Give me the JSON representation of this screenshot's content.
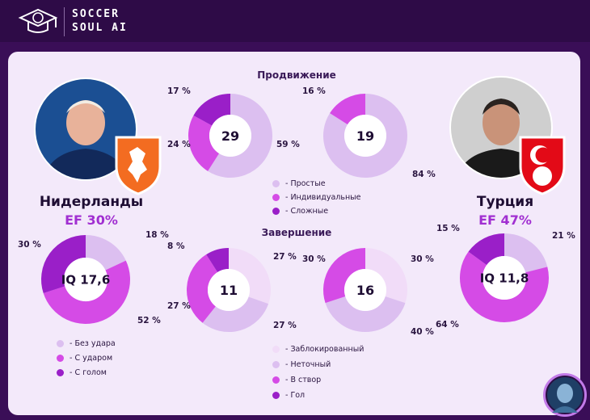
{
  "brand": {
    "line1": "SOCCER",
    "line2": "SOUL AI"
  },
  "sections": {
    "progress": "Продвижение",
    "finish": "Завершение"
  },
  "teams": {
    "left": {
      "name": "Нидерланды",
      "ef": "EF  30%"
    },
    "right": {
      "name": "Турция",
      "ef": "EF  47%"
    }
  },
  "legends": {
    "progress": [
      "- Простые",
      "- Индивидуальные",
      "- Сложные"
    ],
    "attack": [
      "- Без удара",
      "- С ударом",
      "- С голом"
    ],
    "finish": [
      "- Заблокированный",
      "- Неточный",
      "- В створ",
      "- Гол"
    ]
  },
  "colors": {
    "light": "#dcbff0",
    "pale": "#f1dcf8",
    "medium": "#d54be6",
    "dark": "#9a1fc8",
    "mid2": "#d9b3ee"
  },
  "chart_data": [
    {
      "type": "pie",
      "id": "nl-attack",
      "center_label": "IQ 17,6",
      "slices": [
        {
          "label": "Без удара",
          "value": 18,
          "text": "18 %"
        },
        {
          "label": "С ударом",
          "value": 52,
          "text": "52 %"
        },
        {
          "label": "С голом",
          "value": 30,
          "text": "30 %"
        }
      ]
    },
    {
      "type": "pie",
      "id": "nl-progress",
      "center_label": "29",
      "slices": [
        {
          "label": "Простые",
          "value": 59,
          "text": "59 %"
        },
        {
          "label": "Индивидуальные",
          "value": 24,
          "text": "24 %"
        },
        {
          "label": "Сложные",
          "value": 17,
          "text": "17 %"
        }
      ]
    },
    {
      "type": "pie",
      "id": "tr-progress",
      "center_label": "19",
      "slices": [
        {
          "label": "Простые",
          "value": 84,
          "text": "84 %"
        },
        {
          "label": "Индивидуальные",
          "value": 16,
          "text": "16 %"
        },
        {
          "label": "Сложные",
          "value": 0,
          "text": ""
        }
      ]
    },
    {
      "type": "pie",
      "id": "nl-finish",
      "center_label": "11",
      "slices": [
        {
          "label": "Заблокированный",
          "value": 27,
          "text": "27 %"
        },
        {
          "label": "Неточный",
          "value": 27,
          "text": "27 %"
        },
        {
          "label": "В створ",
          "value": 27,
          "text": "27 %"
        },
        {
          "label": "Гол",
          "value": 8,
          "text": "8 %"
        }
      ]
    },
    {
      "type": "pie",
      "id": "tr-finish",
      "center_label": "16",
      "slices": [
        {
          "label": "Заблокированный",
          "value": 30,
          "text": "30 %"
        },
        {
          "label": "Неточный",
          "value": 40,
          "text": "40 %"
        },
        {
          "label": "В створ",
          "value": 30,
          "text": "30 %"
        },
        {
          "label": "Гол",
          "value": 0,
          "text": ""
        }
      ]
    },
    {
      "type": "pie",
      "id": "tr-attack",
      "center_label": "IQ 11,8",
      "slices": [
        {
          "label": "Без удара",
          "value": 21,
          "text": "21 %"
        },
        {
          "label": "С ударом",
          "value": 64,
          "text": "64 %"
        },
        {
          "label": "С голом",
          "value": 15,
          "text": "15 %"
        }
      ]
    }
  ]
}
